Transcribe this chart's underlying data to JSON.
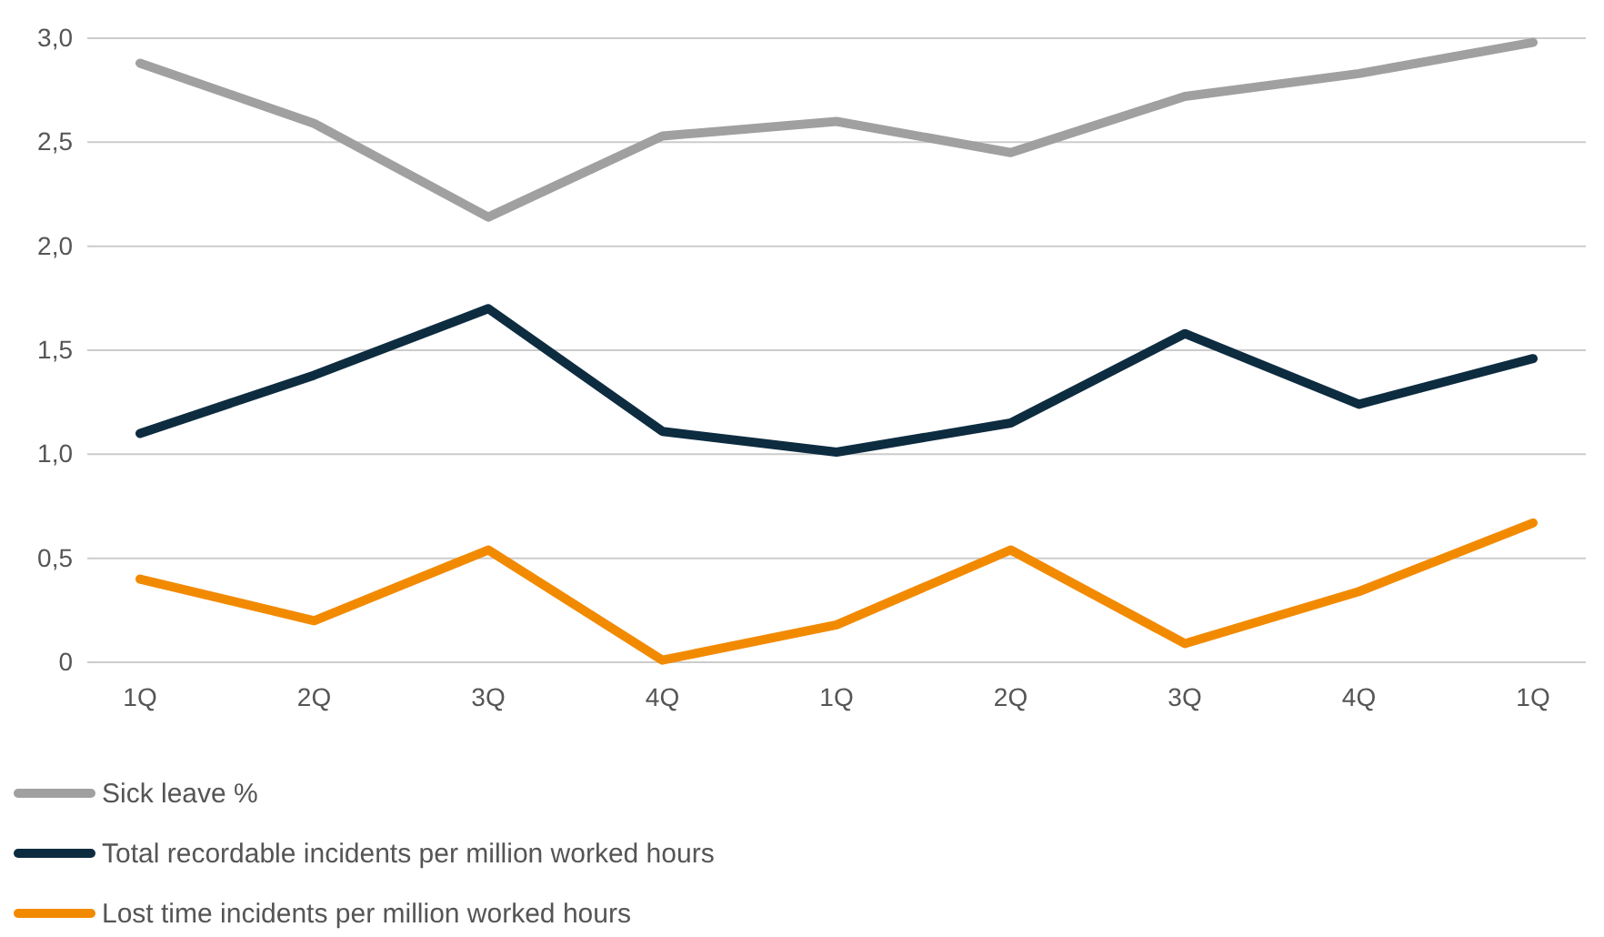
{
  "chart_data": {
    "type": "line",
    "categories": [
      "1Q",
      "2Q",
      "3Q",
      "4Q",
      "1Q",
      "2Q",
      "3Q",
      "4Q",
      "1Q"
    ],
    "series": [
      {
        "name": "Sick leave %",
        "color": "#a0a0a0",
        "values": [
          2.88,
          2.59,
          2.14,
          2.53,
          2.6,
          2.45,
          2.72,
          2.83,
          2.98
        ]
      },
      {
        "name": "Total recordable incidents per million worked hours",
        "color": "#0d2c40",
        "values": [
          1.1,
          1.38,
          1.7,
          1.11,
          1.01,
          1.15,
          1.58,
          1.24,
          1.46
        ]
      },
      {
        "name": "Lost time incidents per million worked hours",
        "color": "#f28a00",
        "values": [
          0.4,
          0.2,
          0.54,
          0.01,
          0.18,
          0.54,
          0.09,
          0.34,
          0.67
        ]
      }
    ],
    "ylim": [
      0,
      3
    ],
    "yticks": [
      {
        "value": 0,
        "label": "0"
      },
      {
        "value": 0.5,
        "label": "0,5"
      },
      {
        "value": 1,
        "label": "1,0"
      },
      {
        "value": 1.5,
        "label": "1,5"
      },
      {
        "value": 2,
        "label": "2,0"
      },
      {
        "value": 2.5,
        "label": "2,5"
      },
      {
        "value": 3,
        "label": "3,0"
      }
    ],
    "grid": "y",
    "legend": "bottom",
    "line_style": "solid"
  }
}
